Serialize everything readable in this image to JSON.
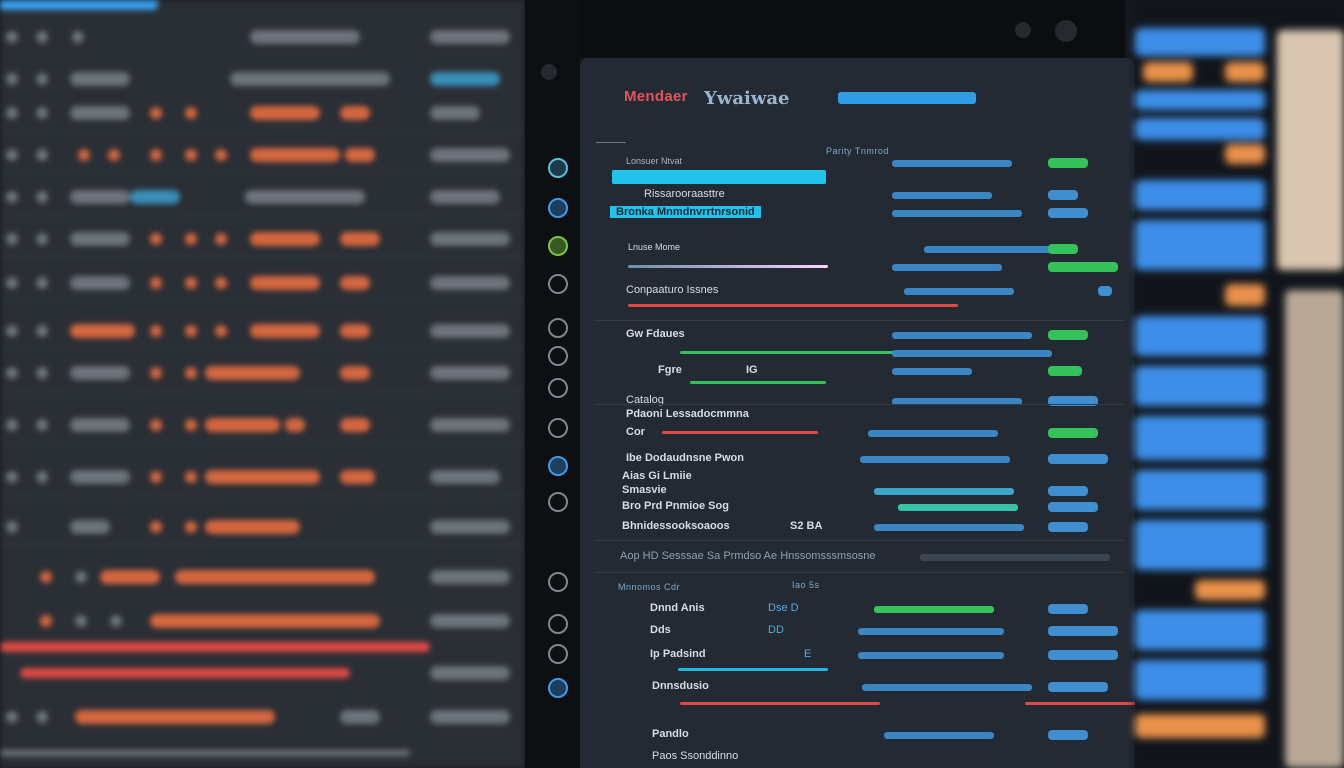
{
  "app": {
    "title": "Mendaer",
    "subtitle": "Ywaiwae"
  },
  "colors": {
    "accent_red": "#e2545a",
    "accent_cyan": "#22c3ea",
    "accent_green": "#36c25a",
    "accent_blue": "#3e8ed0"
  },
  "sidebar_icons": [
    "globe-icon",
    "circle-icon",
    "leaf-icon",
    "clock-icon",
    "gear-icon",
    "refresh-icon",
    "cloud-icon",
    "globe-icon",
    "chat-icon",
    "settings-icon",
    "world-icon",
    "lock-icon",
    "chart-icon",
    "user-icon"
  ],
  "screen": {
    "col_header": "Parity Tnmrod",
    "rows": [
      {
        "label": "Lonsuer Ntvat",
        "status": ""
      },
      {
        "label": "Rissarooraasttre",
        "status": ""
      },
      {
        "label": "Bronka Mnmdnvrrtnrsonid",
        "status": ""
      },
      {
        "label": "Lnuse Mome",
        "status": ""
      },
      {
        "label": "Conpaaturo Issnes",
        "status": ""
      },
      {
        "label": "Gw Fdaues",
        "status": ""
      },
      {
        "label": "Fgre",
        "status": "IG"
      },
      {
        "label": "Catalog",
        "status": ""
      },
      {
        "label": "Pdaoni Lessadocmmna",
        "status": ""
      },
      {
        "label": "Cor",
        "status": ""
      },
      {
        "label": "Ibe Dodaudnsne Pwon",
        "status": ""
      },
      {
        "label": "Aias Gi Lmiie",
        "status": ""
      },
      {
        "label": "Smasvie",
        "status": ""
      },
      {
        "label": "Bro Prd Pnmioe Sog",
        "status": ""
      },
      {
        "label": "Bhnidessooksoaoos",
        "status": "S2 BA"
      }
    ],
    "banner": "Aop HD Sesssae Sa Prmdso Ae Hnssomsssmsosne",
    "section2_head": "Mnnomos Cdr",
    "section2_head_right": "Iao 5s",
    "rows2": [
      {
        "label": "Dnnd Anis",
        "code": "Dse D"
      },
      {
        "label": "Dds",
        "code": "DD"
      },
      {
        "label": "Ip Padsind",
        "code": "E"
      },
      {
        "label": "Dnnsdusio",
        "code": ""
      },
      {
        "label": "Pandlo",
        "code": ""
      },
      {
        "label": "Paos Ssonddinno",
        "code": ""
      }
    ]
  }
}
